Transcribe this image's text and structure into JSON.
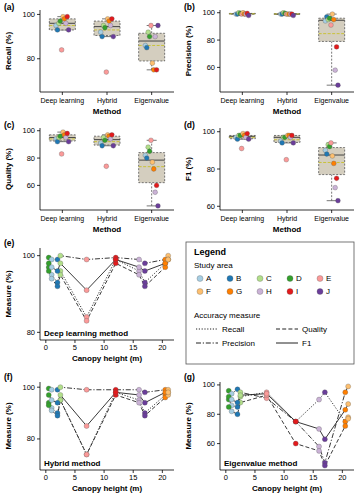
{
  "chart_data": [
    {
      "type": "box",
      "panel_label": "(a)",
      "x_label": "Method",
      "y_label": "Recall (%)",
      "categories": [
        "Deep learning",
        "Hybrid",
        "Eigenvalue"
      ],
      "ylim": [
        65,
        102
      ],
      "yticks": [
        80,
        100
      ],
      "grid": false,
      "boxes": [
        {
          "low": 93,
          "q1": 93,
          "median": 96,
          "q3": 98,
          "high": 99,
          "mean": 95
        },
        {
          "low": 90,
          "q1": 90.5,
          "median": 94.5,
          "q3": 97,
          "high": 98,
          "mean": 93
        },
        {
          "low": 75,
          "q1": 79,
          "median": 88,
          "q3": 91.5,
          "high": 95,
          "mean": 86
        }
      ],
      "series": [
        {
          "color": "#a6cee3",
          "values": [
            95,
            92,
            86
          ]
        },
        {
          "color": "#1f78b4",
          "values": [
            93,
            90,
            85
          ]
        },
        {
          "color": "#b2df8a",
          "values": [
            96,
            95,
            92
          ]
        },
        {
          "color": "#33a02c",
          "values": [
            97,
            94,
            90
          ]
        },
        {
          "color": "#fb9a99",
          "values": [
            84,
            74,
            95
          ]
        },
        {
          "color": "#fdbf6f",
          "values": [
            99,
            98,
            78
          ]
        },
        {
          "color": "#ff7f00",
          "values": [
            98,
            97,
            75
          ]
        },
        {
          "color": "#cab2d6",
          "values": [
            96,
            95,
            90
          ]
        },
        {
          "color": "#e31a1c",
          "values": [
            99,
            98,
            75
          ]
        },
        {
          "color": "#6a3d9a",
          "values": [
            93,
            90,
            95
          ]
        }
      ]
    },
    {
      "type": "box",
      "panel_label": "(b)",
      "x_label": "Method",
      "y_label": "Precision (%)",
      "categories": [
        "Deep learning",
        "Hybrid",
        "Eigenvalue"
      ],
      "ylim": [
        42,
        102
      ],
      "yticks": [
        60,
        80,
        100
      ],
      "grid": false,
      "boxes": [
        {
          "low": 98,
          "q1": 99,
          "median": 99.2,
          "q3": 99.5,
          "high": 100,
          "mean": 99.2
        },
        {
          "low": 98,
          "q1": 98.8,
          "median": 99,
          "q3": 99.3,
          "high": 100,
          "mean": 99.1
        },
        {
          "low": 47,
          "q1": 79,
          "median": 94.5,
          "q3": 96,
          "high": 99,
          "mean": 84.7
        }
      ],
      "series": [
        {
          "color": "#a6cee3",
          "values": [
            99,
            99,
            94
          ]
        },
        {
          "color": "#1f78b4",
          "values": [
            99,
            99,
            97
          ]
        },
        {
          "color": "#b2df8a",
          "values": [
            100,
            100,
            95
          ]
        },
        {
          "color": "#33a02c",
          "values": [
            99.5,
            99.5,
            96
          ]
        },
        {
          "color": "#fb9a99",
          "values": [
            99,
            99,
            91
          ]
        },
        {
          "color": "#fdbf6f",
          "values": [
            100,
            99,
            99
          ]
        },
        {
          "color": "#ff7f00",
          "values": [
            99,
            99,
            95
          ]
        },
        {
          "color": "#cab2d6",
          "values": [
            99,
            99,
            58
          ]
        },
        {
          "color": "#e31a1c",
          "values": [
            99.5,
            99,
            75
          ]
        },
        {
          "color": "#6a3d9a",
          "values": [
            98,
            98,
            47
          ]
        }
      ]
    },
    {
      "type": "box",
      "panel_label": "(c)",
      "x_label": "Method",
      "y_label": "Quality (%)",
      "categories": [
        "Deep learning",
        "Hybrid",
        "Eigenvalue"
      ],
      "ylim": [
        42,
        102
      ],
      "yticks": [
        60,
        80,
        100
      ],
      "grid": false,
      "boxes": [
        {
          "low": 92,
          "q1": 92.5,
          "median": 95,
          "q3": 97,
          "high": 99,
          "mean": 94
        },
        {
          "low": 89,
          "q1": 89.5,
          "median": 93.5,
          "q3": 96,
          "high": 97,
          "mean": 92
        },
        {
          "low": 45,
          "q1": 62,
          "median": 78.5,
          "q3": 84,
          "high": 93,
          "mean": 73.7
        }
      ],
      "series": [
        {
          "color": "#a6cee3",
          "values": [
            94,
            91,
            82
          ]
        },
        {
          "color": "#1f78b4",
          "values": [
            92,
            89,
            80
          ]
        },
        {
          "color": "#b2df8a",
          "values": [
            95,
            95,
            88
          ]
        },
        {
          "color": "#33a02c",
          "values": [
            96,
            93,
            85
          ]
        },
        {
          "color": "#fb9a99",
          "values": [
            83,
            74,
            93
          ]
        },
        {
          "color": "#fdbf6f",
          "values": [
            99,
            97,
            77
          ]
        },
        {
          "color": "#ff7f00",
          "values": [
            97,
            96,
            72
          ]
        },
        {
          "color": "#cab2d6",
          "values": [
            95,
            94,
            55
          ]
        },
        {
          "color": "#e31a1c",
          "values": [
            98,
            97,
            60
          ]
        },
        {
          "color": "#6a3d9a",
          "values": [
            92,
            89,
            45
          ]
        }
      ]
    },
    {
      "type": "box",
      "panel_label": "(d)",
      "x_label": "Method",
      "y_label": "F1 (%)",
      "categories": [
        "Deep learning",
        "Hybrid",
        "Eigenvalue"
      ],
      "ylim": [
        58,
        102
      ],
      "yticks": [
        60,
        80,
        100
      ],
      "grid": false,
      "boxes": [
        {
          "low": 96,
          "q1": 96.25,
          "median": 97.5,
          "q3": 98,
          "high": 99,
          "mean": 97
        },
        {
          "low": 94,
          "q1": 94.25,
          "median": 97,
          "q3": 98,
          "high": 98,
          "mean": 95.7
        },
        {
          "low": 63,
          "q1": 77,
          "median": 87.5,
          "q3": 91.5,
          "high": 94,
          "mean": 83.5
        }
      ],
      "series": [
        {
          "color": "#a6cee3",
          "values": [
            97,
            95,
            90
          ]
        },
        {
          "color": "#1f78b4",
          "values": [
            96,
            94,
            88
          ]
        },
        {
          "color": "#b2df8a",
          "values": [
            98,
            97,
            93
          ]
        },
        {
          "color": "#33a02c",
          "values": [
            98,
            97,
            92
          ]
        },
        {
          "color": "#fb9a99",
          "values": [
            91,
            85,
            94
          ]
        },
        {
          "color": "#fdbf6f",
          "values": [
            99,
            98,
            87
          ]
        },
        {
          "color": "#ff7f00",
          "values": [
            98,
            98,
            83
          ]
        },
        {
          "color": "#cab2d6",
          "values": [
            97,
            97,
            70
          ]
        },
        {
          "color": "#e31a1c",
          "values": [
            99,
            98,
            75
          ]
        },
        {
          "color": "#6a3d9a",
          "values": [
            96,
            94,
            63
          ]
        }
      ]
    },
    {
      "type": "line",
      "panel_label": "(e)",
      "title": "Deep learning method",
      "x_label": "Canopy height (m)",
      "y_label": "Measure (%)",
      "marker": "circle",
      "x": [
        0.5,
        1,
        2,
        2.5,
        7,
        12,
        16,
        17,
        20.5,
        21
      ],
      "xlim": [
        -1,
        22
      ],
      "xticks": [
        0,
        5,
        10,
        15,
        20
      ],
      "ylim": [
        78,
        102
      ],
      "yticks": [
        80,
        100
      ],
      "grid": false,
      "colors": [
        "#33a02c",
        "#a6cee3",
        "#1f78b4",
        "#b2df8a",
        "#fb9a99",
        "#e31a1c",
        "#cab2d6",
        "#6a3d9a",
        "#ff7f00",
        "#fdbf6f"
      ],
      "series": [
        {
          "line_style": "dotted",
          "values": [
            97,
            95,
            93,
            96,
            84,
            99,
            96,
            93,
            98,
            99
          ]
        },
        {
          "line_style": "dashdot",
          "values": [
            99.5,
            99,
            99,
            100,
            99,
            99.5,
            99,
            98,
            99,
            100
          ]
        },
        {
          "line_style": "dashed",
          "values": [
            96,
            94,
            92,
            95,
            83,
            98,
            95,
            92,
            97,
            99
          ]
        },
        {
          "line_style": "solid",
          "values": [
            98,
            97,
            96,
            98,
            91,
            99,
            97,
            96,
            98,
            99
          ]
        }
      ]
    },
    {
      "type": "line",
      "panel_label": "(f)",
      "title": "Hybrid method",
      "x_label": "Canopy height (m)",
      "y_label": "Measure (%)",
      "marker": "circle",
      "x": [
        0.5,
        1,
        2,
        2.5,
        7,
        12,
        16,
        17,
        20.5,
        21
      ],
      "xlim": [
        -1,
        22
      ],
      "xticks": [
        0,
        5,
        10,
        15,
        20
      ],
      "ylim": [
        68,
        102
      ],
      "yticks": [
        80,
        100
      ],
      "grid": false,
      "colors": [
        "#33a02c",
        "#a6cee3",
        "#1f78b4",
        "#b2df8a",
        "#fb9a99",
        "#e31a1c",
        "#cab2d6",
        "#6a3d9a",
        "#ff7f00",
        "#fdbf6f"
      ],
      "series": [
        {
          "line_style": "dotted",
          "values": [
            94,
            92,
            90,
            95,
            74,
            98,
            95,
            90,
            97,
            98
          ]
        },
        {
          "line_style": "dashdot",
          "values": [
            99.5,
            99,
            99,
            100,
            99,
            99,
            99,
            98,
            99,
            99
          ]
        },
        {
          "line_style": "dashed",
          "values": [
            93,
            91,
            89,
            95,
            74,
            97,
            94,
            89,
            96,
            97
          ]
        },
        {
          "line_style": "solid",
          "values": [
            97,
            95,
            94,
            97,
            85,
            98,
            97,
            94,
            98,
            98
          ]
        }
      ]
    },
    {
      "type": "line",
      "panel_label": "(g)",
      "title": "Eigenvalue method",
      "x_label": "Canopy height (m)",
      "y_label": "Measure (%)",
      "marker": "circle",
      "x": [
        0.5,
        1,
        2,
        2.5,
        7,
        12,
        16,
        17,
        20.5,
        21
      ],
      "xlim": [
        -1,
        22
      ],
      "xticks": [
        0,
        5,
        10,
        15,
        20
      ],
      "ylim": [
        42,
        102
      ],
      "yticks": [
        60,
        80,
        100
      ],
      "grid": false,
      "colors": [
        "#33a02c",
        "#a6cee3",
        "#1f78b4",
        "#b2df8a",
        "#fb9a99",
        "#e31a1c",
        "#cab2d6",
        "#6a3d9a",
        "#ff7f00",
        "#fdbf6f"
      ],
      "series": [
        {
          "line_style": "dotted",
          "values": [
            90,
            86,
            85,
            92,
            95,
            75,
            90,
            95,
            75,
            78
          ]
        },
        {
          "line_style": "dashdot",
          "values": [
            96,
            94,
            97,
            95,
            91,
            75,
            58,
            47,
            95,
            99
          ]
        },
        {
          "line_style": "dashed",
          "values": [
            85,
            82,
            80,
            88,
            93,
            60,
            55,
            45,
            72,
            77
          ]
        },
        {
          "line_style": "solid",
          "values": [
            92,
            90,
            88,
            93,
            94,
            75,
            70,
            63,
            83,
            87
          ]
        }
      ]
    }
  ],
  "legend_box": {
    "title": "Legend",
    "areas_title": "Study area",
    "areas": [
      {
        "name": "A",
        "color": "#a6cee3"
      },
      {
        "name": "B",
        "color": "#1f78b4"
      },
      {
        "name": "C",
        "color": "#b2df8a"
      },
      {
        "name": "D",
        "color": "#33a02c"
      },
      {
        "name": "E",
        "color": "#fb9a99"
      },
      {
        "name": "F",
        "color": "#fdbf6f"
      },
      {
        "name": "G",
        "color": "#ff7f00"
      },
      {
        "name": "H",
        "color": "#cab2d6"
      },
      {
        "name": "I",
        "color": "#e31a1c"
      },
      {
        "name": "J",
        "color": "#6a3d9a"
      }
    ],
    "measures_title": "Accuracy measure",
    "measures": [
      {
        "name": "Recall",
        "line_style": "dotted"
      },
      {
        "name": "Precision",
        "line_style": "dashdot"
      },
      {
        "name": "Quality",
        "line_style": "dashed"
      },
      {
        "name": "F1",
        "line_style": "solid"
      }
    ]
  }
}
